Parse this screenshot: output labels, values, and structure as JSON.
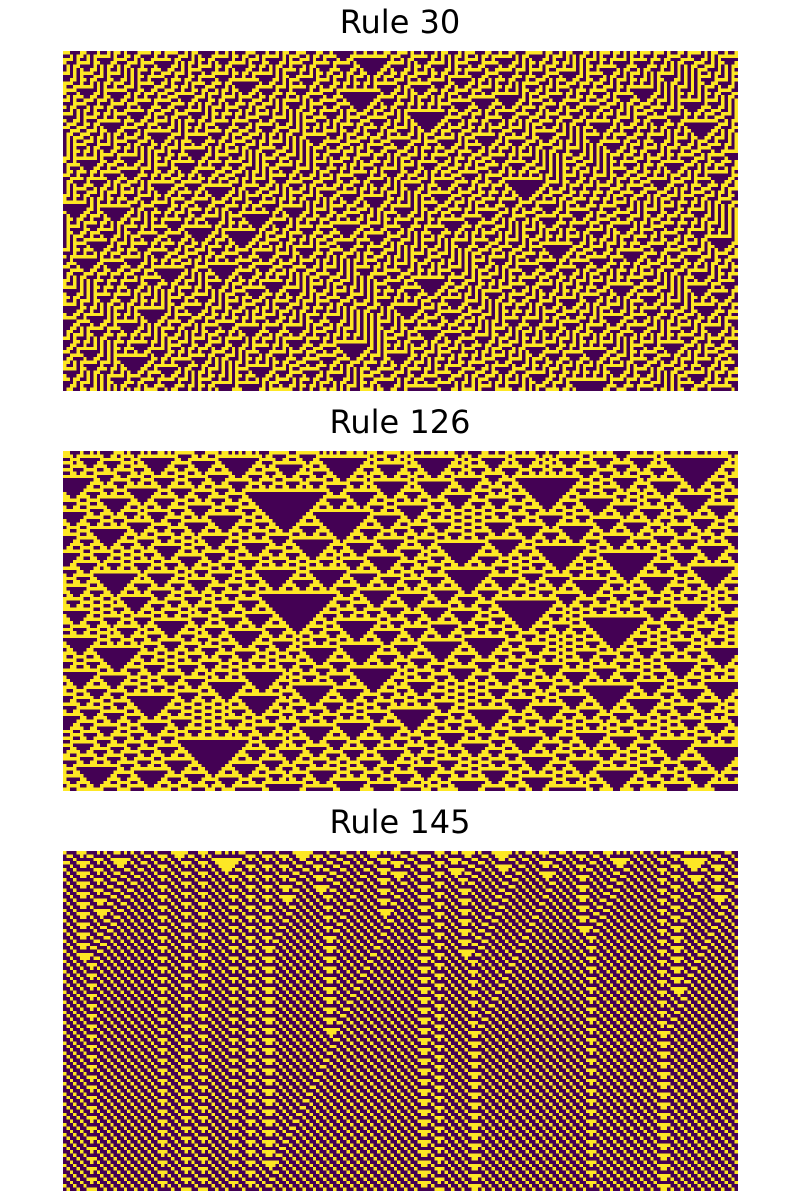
{
  "colors": {
    "zero": "#440154",
    "one": "#fde725"
  },
  "grid": {
    "columns": 200,
    "rows": 100
  },
  "panels": [
    {
      "title": "Rule 30",
      "rule": 30
    },
    {
      "title": "Rule 126",
      "rule": 126
    },
    {
      "title": "Rule 145",
      "rule": 145
    }
  ]
}
